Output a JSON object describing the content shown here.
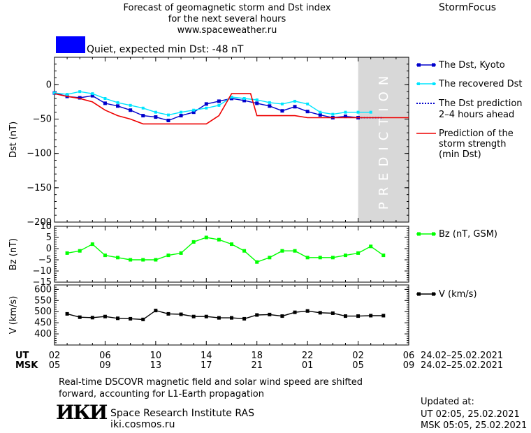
{
  "header": {
    "title_line1": "Forecast of geomagnetic storm and Dst index",
    "title_line2": "for the next several hours",
    "url": "www.spaceweather.ru",
    "brand": "StormFocus"
  },
  "status": {
    "text": "Quiet, expected min Dst: -48 nT",
    "color": "#0000ff"
  },
  "footer": {
    "note_line1": "Real-time DSCOVR magnetic field and solar wind speed are shifted",
    "note_line2": "forward, accounting for L1-Earth propagation",
    "logo_text": "ИКИ",
    "institute": "Space Research Institute RAS",
    "site": "iki.cosmos.ru",
    "updated_label": "Updated at:",
    "updated_ut": "UT   02:05, 25.02.2021",
    "updated_msk": "MSK 05:05, 25.02.2021"
  },
  "time_axis": {
    "ut_label": "UT",
    "msk_label": "MSK",
    "ut_ticks": [
      "02",
      "06",
      "10",
      "14",
      "18",
      "22",
      "02",
      "06"
    ],
    "msk_ticks": [
      "05",
      "09",
      "13",
      "17",
      "21",
      "01",
      "05",
      "09"
    ],
    "ut_date": "24.02–25.02.2021",
    "msk_date": "24.02–25.02.2021"
  },
  "chart_data": [
    {
      "type": "line",
      "ylabel": "Dst (nT)",
      "ylim": [
        -200,
        40
      ],
      "yticks": [
        0,
        -50,
        -100,
        -150,
        -200
      ],
      "xlim": [
        0,
        28
      ],
      "prediction_band": [
        24,
        28
      ],
      "prediction_label": "PREDICTION",
      "series": [
        {
          "name": "The Dst, Kyoto",
          "color": "#0000cc",
          "x": [
            0,
            1,
            2,
            3,
            4,
            5,
            6,
            7,
            8,
            9,
            10,
            11,
            12,
            13,
            14,
            15,
            16,
            17,
            18,
            19,
            20,
            21,
            22,
            23,
            24
          ],
          "y": [
            -12,
            -17,
            -19,
            -16,
            -27,
            -31,
            -37,
            -45,
            -47,
            -52,
            -45,
            -40,
            -28,
            -24,
            -20,
            -23,
            -27,
            -31,
            -38,
            -32,
            -39,
            -44,
            -48,
            -46,
            -48
          ]
        },
        {
          "name": "The recovered Dst",
          "color": "#00e5ff",
          "x": [
            0,
            1,
            2,
            3,
            4,
            5,
            6,
            7,
            8,
            9,
            10,
            11,
            12,
            13,
            14,
            15,
            16,
            17,
            18,
            19,
            20,
            21,
            22,
            23,
            24,
            25
          ],
          "y": [
            -12,
            -14,
            -10,
            -13,
            -20,
            -26,
            -30,
            -34,
            -40,
            -44,
            -40,
            -37,
            -34,
            -30,
            -18,
            -20,
            -22,
            -26,
            -28,
            -24,
            -28,
            -40,
            -43,
            -40,
            -40,
            -40
          ]
        },
        {
          "name": "The Dst prediction 2–4 hours ahead",
          "color": "#0000cc",
          "x": [
            24,
            26
          ],
          "y": [
            -48,
            -48
          ]
        },
        {
          "name": "Prediction of the storm strength (min Dst)",
          "color": "#ee0000",
          "x": [
            0,
            1,
            2,
            3,
            4,
            5,
            6,
            7,
            8,
            9,
            10,
            11,
            12,
            13,
            14,
            14.5,
            15.5,
            16,
            17,
            18,
            19,
            20,
            21,
            22,
            23,
            24,
            25,
            26,
            27,
            28
          ],
          "y": [
            -13,
            -17,
            -20,
            -25,
            -37,
            -45,
            -50,
            -57,
            -57,
            -57,
            -57,
            -57,
            -57,
            -45,
            -13,
            -13,
            -13,
            -45,
            -45,
            -45,
            -45,
            -48,
            -48,
            -48,
            -48,
            -48,
            -48,
            -48,
            -48,
            -48
          ]
        }
      ]
    },
    {
      "type": "line",
      "ylabel": "Bz (nT)",
      "ylim": [
        -15,
        10
      ],
      "yticks": [
        10,
        5,
        0,
        -5,
        -10,
        -15
      ],
      "xlim": [
        0,
        28
      ],
      "series": [
        {
          "name": "Bz (nT, GSM)",
          "color": "#00ff00",
          "x": [
            1,
            2,
            3,
            4,
            5,
            6,
            7,
            8,
            9,
            10,
            11,
            12,
            13,
            14,
            15,
            16,
            17,
            18,
            19,
            20,
            21,
            22,
            23,
            24,
            25,
            26
          ],
          "y": [
            -2,
            -1,
            2,
            -3,
            -4,
            -5,
            -5,
            -5,
            -3,
            -2,
            3,
            5,
            4,
            2,
            -1,
            -6,
            -4,
            -1,
            -1,
            -4,
            -4,
            -4,
            -3,
            -2,
            1,
            -3
          ]
        }
      ]
    },
    {
      "type": "line",
      "ylabel": "V (km/s)",
      "ylim": [
        350,
        620
      ],
      "yticks": [
        600,
        550,
        500,
        450,
        400
      ],
      "xlim": [
        0,
        28
      ],
      "series": [
        {
          "name": "V (km/s)",
          "color": "#000000",
          "x": [
            1,
            2,
            3,
            4,
            5,
            6,
            7,
            8,
            9,
            10,
            11,
            12,
            13,
            14,
            15,
            16,
            17,
            18,
            19,
            20,
            21,
            22,
            23,
            24,
            25,
            26
          ],
          "y": [
            490,
            475,
            473,
            478,
            470,
            468,
            465,
            505,
            490,
            488,
            478,
            478,
            472,
            472,
            468,
            485,
            487,
            480,
            497,
            503,
            495,
            493,
            480,
            480,
            482,
            482
          ]
        }
      ]
    }
  ]
}
